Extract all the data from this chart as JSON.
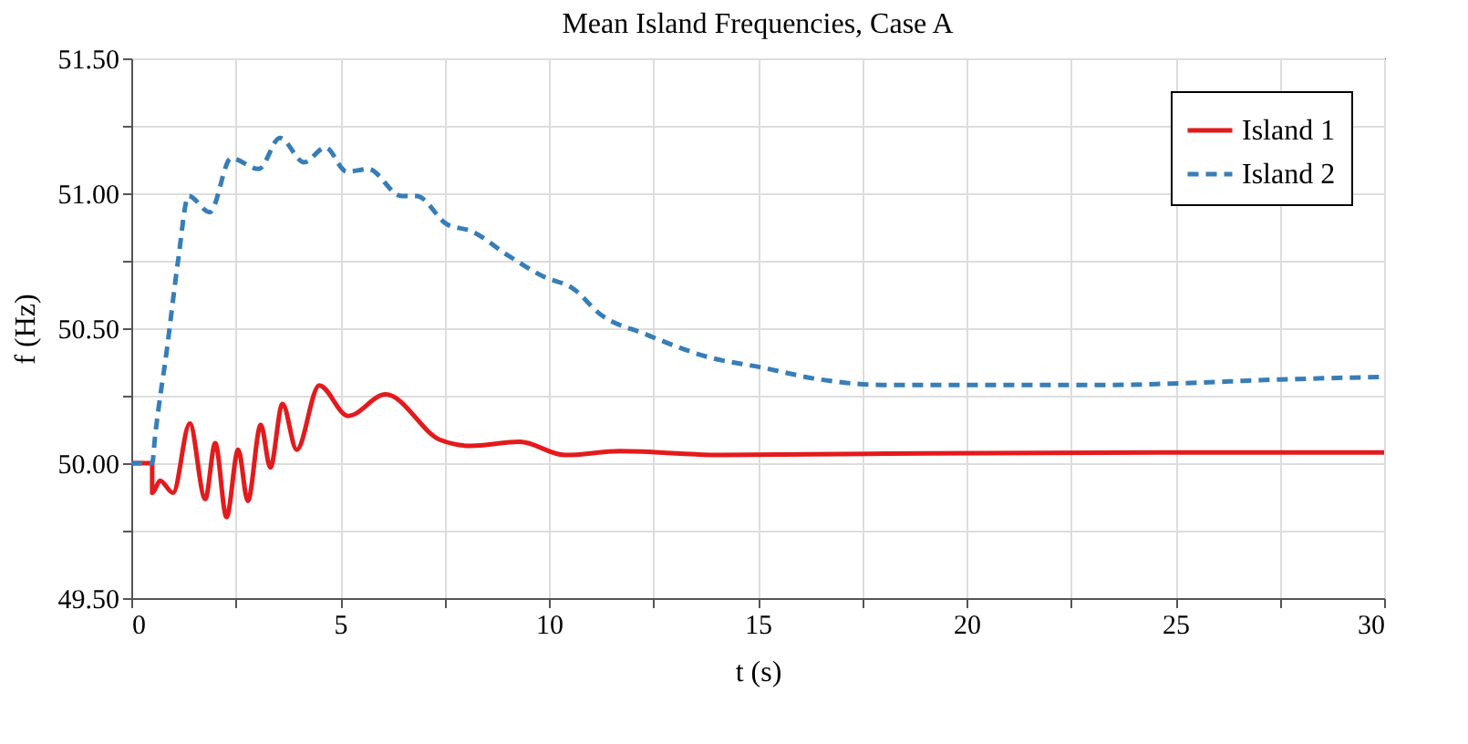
{
  "chart_data": {
    "type": "line",
    "title": "Mean Island Frequencies, Case A",
    "xlabel": "t (s)",
    "ylabel": "f (Hz)",
    "xlim": [
      0,
      30
    ],
    "ylim": [
      49.5,
      51.5
    ],
    "xticks": [
      0,
      {
        "value": 2.5,
        "label": null
      },
      5,
      {
        "value": 7.5,
        "label": null
      },
      10,
      {
        "value": 12.5,
        "label": null
      },
      15,
      {
        "value": 17.5,
        "label": null
      },
      20,
      {
        "value": 22.5,
        "label": null
      },
      25,
      {
        "value": 27.5,
        "label": null
      },
      30
    ],
    "yticks": [
      {
        "value": 49.5,
        "label": "49.50"
      },
      {
        "value": 49.75,
        "label": null
      },
      {
        "value": 50,
        "label": "50.00"
      },
      {
        "value": 50.25,
        "label": null
      },
      {
        "value": 50.5,
        "label": "50.50"
      },
      {
        "value": 50.75,
        "label": null
      },
      {
        "value": 51,
        "label": "51.00"
      },
      {
        "value": 51.25,
        "label": null
      },
      {
        "value": 51.5,
        "label": "51.50"
      }
    ],
    "grid": true,
    "legend": "top right",
    "marker": "none",
    "series": [
      {
        "name": "Island 1",
        "color": "#e41a1c",
        "line_style": "solid",
        "x": [
          0,
          0.5,
          0.5,
          0.69,
          1.0,
          1.4,
          1.77,
          2.01,
          2.28,
          2.56,
          2.79,
          3.1,
          3.33,
          3.62,
          3.96,
          4.5,
          5.19,
          6.09,
          7.4,
          8.13,
          9.3,
          10.39,
          11.7,
          14.17,
          17.66,
          24.9,
          30
        ],
        "values": [
          50.0,
          50.0,
          49.89,
          49.935,
          49.89,
          50.147,
          49.867,
          50.074,
          49.8,
          50.05,
          49.86,
          50.142,
          49.984,
          50.22,
          50.05,
          50.288,
          50.175,
          50.255,
          50.086,
          50.064,
          50.079,
          50.03,
          50.045,
          50.03,
          50.035,
          50.04,
          50.04
        ]
      },
      {
        "name": "Island 2",
        "color": "#377eb8",
        "line_style": "dashed",
        "x": [
          0,
          0.5,
          0.57,
          0.86,
          1.12,
          1.37,
          1.88,
          2.39,
          3.05,
          3.56,
          4.14,
          4.65,
          5.16,
          5.67,
          6.47,
          6.83,
          7.56,
          8.14,
          9.02,
          9.89,
          10.55,
          11.27,
          12.28,
          13.89,
          15.05,
          16.5,
          17.96,
          20.0,
          23.5,
          24.9,
          27.5,
          30
        ],
        "values": [
          50.0,
          50.0,
          50.1,
          50.43,
          50.75,
          50.99,
          50.93,
          51.13,
          51.09,
          51.205,
          51.115,
          51.17,
          51.08,
          51.09,
          50.99,
          50.99,
          50.885,
          50.86,
          50.77,
          50.69,
          50.65,
          50.547,
          50.48,
          50.39,
          50.356,
          50.31,
          50.29,
          50.29,
          50.29,
          50.295,
          50.31,
          50.32
        ]
      }
    ]
  }
}
